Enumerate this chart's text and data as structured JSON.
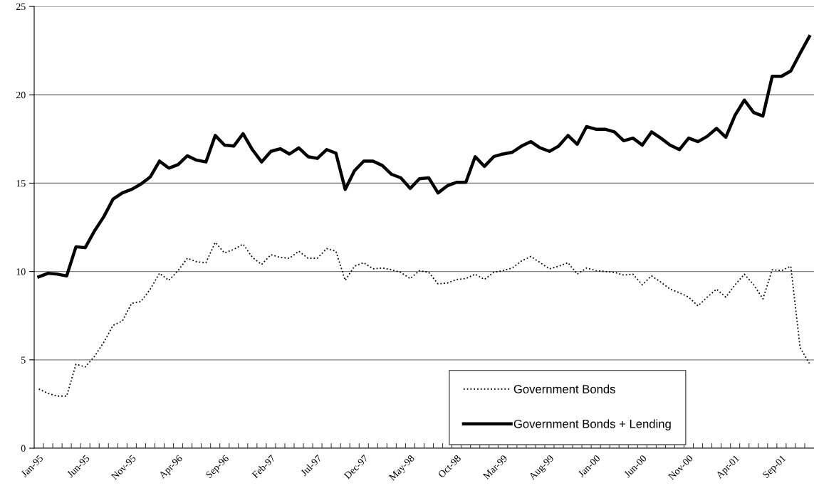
{
  "chart_data": {
    "type": "line",
    "categories": [
      "Jan-95",
      null,
      null,
      null,
      null,
      "Jun-95",
      null,
      null,
      null,
      null,
      "Nov-95",
      null,
      null,
      null,
      null,
      "Apr-96",
      null,
      null,
      null,
      null,
      "Sep-96",
      null,
      null,
      null,
      null,
      "Feb-97",
      null,
      null,
      null,
      null,
      "Jul-97",
      null,
      null,
      null,
      null,
      "Dec-97",
      null,
      null,
      null,
      null,
      "May-98",
      null,
      null,
      null,
      null,
      "Oct-98",
      null,
      null,
      null,
      null,
      "Mar-99",
      null,
      null,
      null,
      null,
      "Aug-99",
      null,
      null,
      null,
      null,
      "Jan-00",
      null,
      null,
      null,
      null,
      "Jun-00",
      null,
      null,
      null,
      null,
      "Nov-00",
      null,
      null,
      null,
      null,
      "Apr-01",
      null,
      null,
      null,
      null,
      "Sep-01",
      null,
      null,
      null
    ],
    "series": [
      {
        "name": "Government Bonds",
        "color": "#000000",
        "line_style": "dotted",
        "values": [
          3.35,
          3.1,
          2.95,
          2.95,
          4.75,
          4.6,
          5.2,
          6.0,
          6.95,
          7.2,
          8.2,
          8.3,
          9.0,
          9.9,
          9.5,
          10.05,
          10.75,
          10.55,
          10.5,
          11.65,
          11.05,
          11.25,
          11.55,
          10.8,
          10.4,
          10.95,
          10.8,
          10.75,
          11.15,
          10.75,
          10.75,
          11.3,
          11.15,
          9.5,
          10.3,
          10.5,
          10.15,
          10.2,
          10.1,
          9.95,
          9.6,
          10.05,
          9.95,
          9.3,
          9.35,
          9.55,
          9.6,
          9.85,
          9.55,
          9.95,
          10.05,
          10.2,
          10.6,
          10.85,
          10.5,
          10.15,
          10.3,
          10.5,
          9.85,
          10.2,
          10.05,
          10.0,
          9.95,
          9.8,
          9.85,
          9.25,
          9.75,
          9.4,
          9.0,
          8.8,
          8.55,
          8.05,
          8.55,
          9.0,
          8.55,
          9.25,
          9.85,
          9.25,
          8.45,
          10.1,
          10.05,
          10.3,
          5.7,
          4.8
        ]
      },
      {
        "name": "Government Bonds + Lending",
        "color": "#000000",
        "line_style": "solid",
        "values": [
          9.7,
          9.9,
          9.85,
          9.75,
          11.4,
          11.35,
          12.3,
          13.1,
          14.1,
          14.45,
          14.65,
          14.95,
          15.35,
          16.25,
          15.85,
          16.05,
          16.55,
          16.3,
          16.2,
          17.7,
          17.15,
          17.1,
          17.8,
          16.9,
          16.2,
          16.8,
          16.95,
          16.65,
          17.0,
          16.5,
          16.4,
          16.9,
          16.7,
          14.65,
          15.7,
          16.25,
          16.25,
          16.0,
          15.5,
          15.3,
          14.7,
          15.25,
          15.3,
          14.45,
          14.85,
          15.05,
          15.05,
          16.5,
          15.95,
          16.5,
          16.65,
          16.75,
          17.1,
          17.35,
          17.0,
          16.8,
          17.1,
          17.7,
          17.2,
          18.2,
          18.05,
          18.05,
          17.9,
          17.4,
          17.55,
          17.15,
          17.9,
          17.55,
          17.15,
          16.9,
          17.55,
          17.35,
          17.65,
          18.1,
          17.6,
          18.85,
          19.7,
          19.0,
          18.8,
          21.05,
          21.05,
          21.35,
          22.35,
          23.3
        ]
      }
    ],
    "ylim": [
      0,
      25
    ],
    "yticks": [
      0,
      5,
      10,
      15,
      20,
      25
    ],
    "grid": "y",
    "legend": "bottom right",
    "marker": "none"
  }
}
